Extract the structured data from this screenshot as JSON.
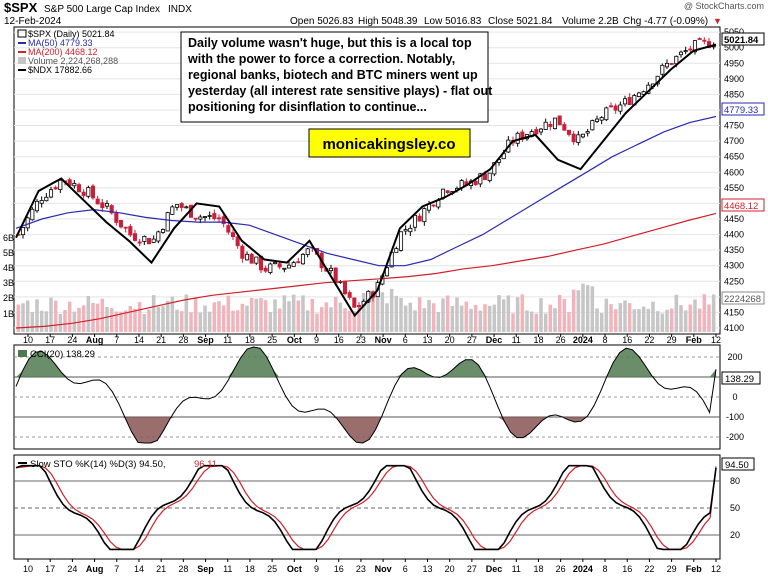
{
  "header": {
    "symbol": "$SPX",
    "name": "S&P 500 Large Cap Index",
    "exchange": "INDX",
    "date": "12-Feb-2024",
    "copyright": "@ StockCharts.com",
    "quote": {
      "open": "Open 5026.83",
      "high": "High 5048.39",
      "low": "Low 5016.83",
      "close": "Close 5021.84",
      "volume": "Volume 2.2B",
      "chg": "Chg -4.77 (-0.09%)",
      "chg_marker": "▼"
    }
  },
  "legend": [
    {
      "label": "$SPX (Daily) 5021.84",
      "color": "#000000"
    },
    {
      "label": "MA(50) 4779.33",
      "color": "#2a2ab0"
    },
    {
      "label": "MA(200) 4468.12",
      "color": "#d0202a"
    },
    {
      "label": "Volume 2,224,268,288",
      "color": "#b8b8b8"
    },
    {
      "label": "$NDX 17882.66",
      "color": "#000000"
    }
  ],
  "annotation": {
    "text_lines": [
      "Daily volume wasn't huge, but this is a local top",
      "with the power to force a correction. Notably,",
      "regional banks, biotech and BTC miners went up",
      "yesterday (all interest rate sensitive plays) - flat out",
      "positioning for disinflation to continue..."
    ],
    "brand": "monicakingsley.co"
  },
  "price_axis": {
    "ticks": [
      "5050",
      "5000",
      "4950",
      "4900",
      "4850",
      "4800",
      "4750",
      "4700",
      "4650",
      "4600",
      "4550",
      "4500",
      "4450",
      "4400",
      "4350",
      "4300",
      "4250",
      "4200",
      "4150",
      "4100"
    ],
    "tags": [
      {
        "label": "5021.84",
        "color": "#000000"
      },
      {
        "label": "4779.33",
        "color": "#2a2ab0"
      },
      {
        "label": "4468.12",
        "color": "#d0202a"
      },
      {
        "label": "2224268",
        "color": "#555555"
      }
    ],
    "volume_ticks": [
      "6B",
      "5B",
      "4B",
      "3B",
      "2B",
      "1B"
    ]
  },
  "x_axis": {
    "labels": [
      "10",
      "17",
      "24",
      "Aug",
      "7",
      "14",
      "21",
      "28",
      "Sep",
      "11",
      "18",
      "25",
      "Oct",
      "9",
      "16",
      "23",
      "Nov",
      "6",
      "13",
      "20",
      "27",
      "Dec",
      "11",
      "18",
      "26",
      "2024",
      "8",
      "16",
      "22",
      "29",
      "Feb",
      "12"
    ]
  },
  "cci": {
    "title": "CCI(20) 138.29",
    "ticks": [
      "200",
      "100",
      "0",
      "-100",
      "-200"
    ],
    "tag": "138.29"
  },
  "sto": {
    "title_k": "Slow STO %K(14) %D(3) 94.50,",
    "title_d": "96.11",
    "ticks": [
      "80",
      "50",
      "20"
    ],
    "tag": "94.50"
  },
  "chart_data": {
    "type": "candlestick",
    "title": "$SPX S&P 500 Large Cap Index (Daily)",
    "x_range": [
      "2023-07-10",
      "2024-02-12"
    ],
    "ylim": [
      4100,
      5060
    ],
    "series": [
      {
        "name": "SPX close (approx)",
        "dates": [
          "Jul 10",
          "Jul 17",
          "Jul 24",
          "Jul 31",
          "Aug 7",
          "Aug 14",
          "Aug 21",
          "Aug 28",
          "Sep 5",
          "Sep 11",
          "Sep 18",
          "Sep 25",
          "Oct 2",
          "Oct 9",
          "Oct 16",
          "Oct 23",
          "Oct 30",
          "Nov 6",
          "Nov 13",
          "Nov 20",
          "Nov 27",
          "Dec 4",
          "Dec 11",
          "Dec 18",
          "Dec 26",
          "Jan 2",
          "Jan 8",
          "Jan 16",
          "Jan 22",
          "Jan 29",
          "Feb 5",
          "Feb 12"
        ],
        "values": [
          4400,
          4520,
          4580,
          4540,
          4480,
          4400,
          4380,
          4500,
          4460,
          4450,
          4340,
          4290,
          4300,
          4350,
          4270,
          4160,
          4230,
          4400,
          4470,
          4550,
          4560,
          4600,
          4700,
          4740,
          4770,
          4700,
          4780,
          4820,
          4880,
          4950,
          5000,
          5021
        ]
      },
      {
        "name": "MA(50)",
        "last": 4779.33
      },
      {
        "name": "MA(200)",
        "last": 4468.12
      },
      {
        "name": "$NDX overlay",
        "last": 17882.66
      },
      {
        "name": "Volume",
        "last": 2224268288
      }
    ],
    "indicators": {
      "cci_20_last": 138.29,
      "slow_sto_k_last": 94.5,
      "slow_sto_d_last": 96.11
    }
  }
}
